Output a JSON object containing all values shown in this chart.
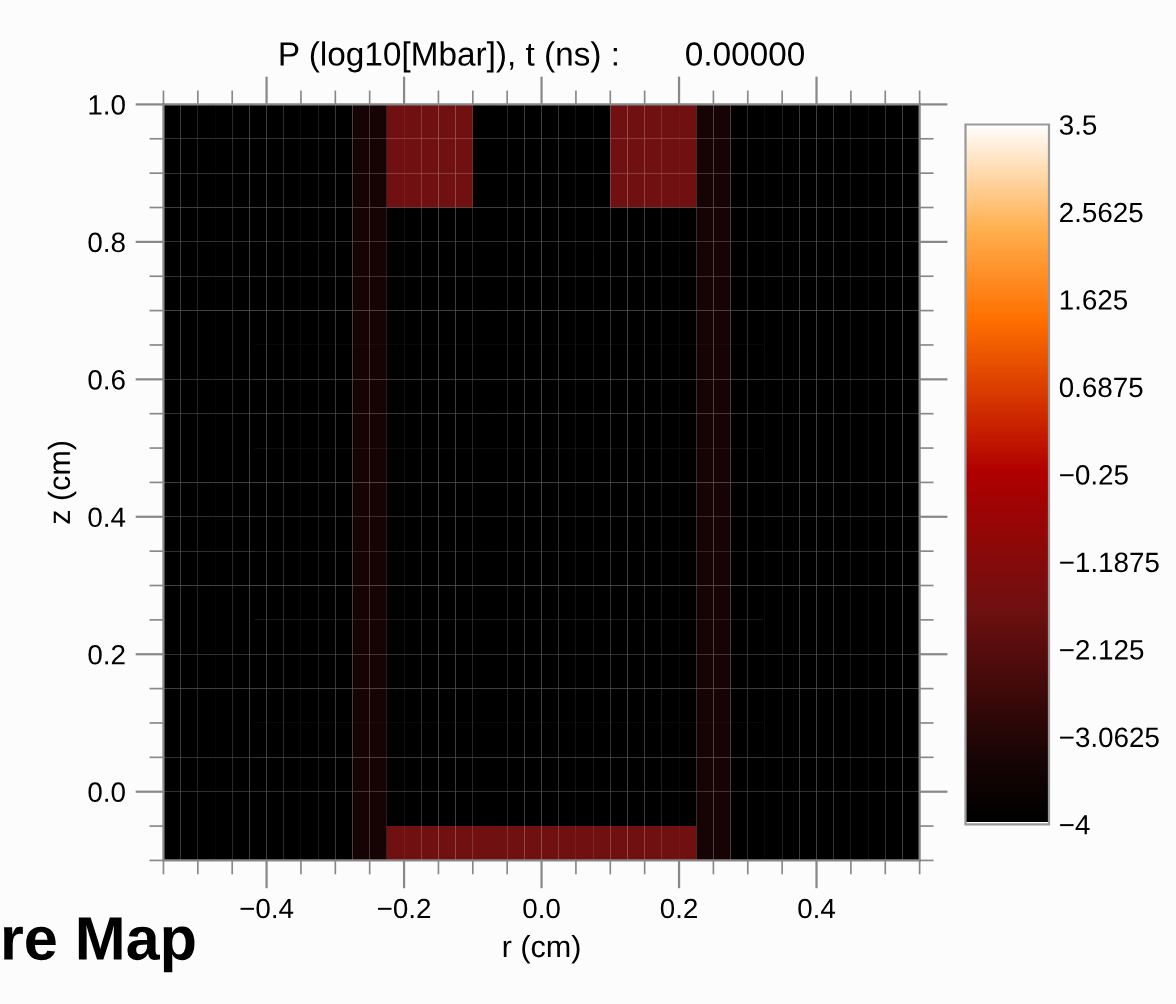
{
  "chart_data": {
    "type": "heatmap",
    "title": "P (log10[Mbar]), t (ns) :       0.00000",
    "xlabel": "r (cm)",
    "ylabel": "z (cm)",
    "x": [
      -0.5375,
      -0.5125,
      -0.4875,
      -0.4625,
      -0.4375,
      -0.4125,
      -0.3875,
      -0.3625,
      -0.3375,
      -0.3125,
      -0.2875,
      -0.2625,
      -0.2375,
      -0.2125,
      -0.1875,
      -0.1625,
      -0.1375,
      -0.1125,
      -0.0875,
      -0.0625,
      -0.0375,
      -0.0125,
      0.0125,
      0.0375,
      0.0625,
      0.0875,
      0.1125,
      0.1375,
      0.1625,
      0.1875,
      0.2125,
      0.2375,
      0.2625,
      0.2875,
      0.3125,
      0.3375,
      0.3625,
      0.3875,
      0.4125,
      0.4375,
      0.4625,
      0.4875,
      0.5125,
      0.5375
    ],
    "y": [
      0.975,
      0.925,
      0.875,
      0.825,
      0.775,
      0.725,
      0.675,
      0.625,
      0.575,
      0.525,
      0.475,
      0.425,
      0.375,
      0.325,
      0.275,
      0.225,
      0.175,
      0.125,
      0.075,
      0.025,
      -0.025,
      -0.075
    ],
    "cells": [
      [
        -4,
        -4,
        -4,
        -4,
        -4,
        -4,
        -4,
        -4,
        -4,
        -4,
        -4,
        -3.4,
        -3.4,
        -1.7,
        -1.7,
        -1.7,
        -1.7,
        -1.7,
        -4,
        -4,
        -4,
        -4,
        -4,
        -4,
        -4,
        -4,
        -1.7,
        -1.7,
        -1.7,
        -1.7,
        -1.7,
        -3.4,
        -3.4,
        -4,
        -4,
        -4,
        -4,
        -4,
        -4,
        -4,
        -4,
        -4,
        -4,
        -4
      ],
      [
        -4,
        -4,
        -4,
        -4,
        -4,
        -4,
        -4,
        -4,
        -4,
        -4,
        -4,
        -3.4,
        -3.4,
        -1.7,
        -1.7,
        -1.7,
        -1.7,
        -1.7,
        -4,
        -4,
        -4,
        -4,
        -4,
        -4,
        -4,
        -4,
        -1.7,
        -1.7,
        -1.7,
        -1.7,
        -1.7,
        -3.4,
        -3.4,
        -4,
        -4,
        -4,
        -4,
        -4,
        -4,
        -4,
        -4,
        -4,
        -4,
        -4
      ],
      [
        -4,
        -4,
        -4,
        -4,
        -4,
        -4,
        -4,
        -4,
        -4,
        -4,
        -4,
        -3.4,
        -3.4,
        -1.7,
        -1.7,
        -1.7,
        -1.7,
        -1.7,
        -4,
        -4,
        -4,
        -4,
        -4,
        -4,
        -4,
        -4,
        -1.7,
        -1.7,
        -1.7,
        -1.7,
        -1.7,
        -3.4,
        -3.4,
        -4,
        -4,
        -4,
        -4,
        -4,
        -4,
        -4,
        -4,
        -4,
        -4,
        -4
      ],
      [
        -4,
        -4,
        -4,
        -4,
        -4,
        -4,
        -4,
        -4,
        -4,
        -4,
        -4,
        -3.4,
        -3.4,
        -4,
        -4,
        -4,
        -4,
        -4,
        -4,
        -4,
        -4,
        -4,
        -4,
        -4,
        -4,
        -4,
        -4,
        -4,
        -4,
        -4,
        -4,
        -3.4,
        -3.4,
        -4,
        -4,
        -4,
        -4,
        -4,
        -4,
        -4,
        -4,
        -4,
        -4,
        -4
      ],
      [
        -4,
        -4,
        -4,
        -4,
        -4,
        -4,
        -4,
        -4,
        -4,
        -4,
        -4,
        -3.4,
        -3.4,
        -4,
        -4,
        -4,
        -4,
        -4,
        -4,
        -4,
        -4,
        -4,
        -4,
        -4,
        -4,
        -4,
        -4,
        -4,
        -4,
        -4,
        -4,
        -3.4,
        -3.4,
        -4,
        -4,
        -4,
        -4,
        -4,
        -4,
        -4,
        -4,
        -4,
        -4,
        -4
      ],
      [
        -4,
        -4,
        -4,
        -4,
        -4,
        -4,
        -4,
        -4,
        -4,
        -4,
        -4,
        -3.4,
        -3.4,
        -4,
        -4,
        -4,
        -4,
        -4,
        -4,
        -4,
        -4,
        -4,
        -4,
        -4,
        -4,
        -4,
        -4,
        -4,
        -4,
        -4,
        -4,
        -3.4,
        -3.4,
        -4,
        -4,
        -4,
        -4,
        -4,
        -4,
        -4,
        -4,
        -4,
        -4,
        -4
      ],
      [
        -4,
        -4,
        -4,
        -4,
        -4,
        -4,
        -4,
        -4,
        -4,
        -4,
        -4,
        -3.4,
        -3.4,
        -4,
        -4,
        -4,
        -4,
        -4,
        -4,
        -4,
        -4,
        -4,
        -4,
        -4,
        -4,
        -4,
        -4,
        -4,
        -4,
        -4,
        -4,
        -3.4,
        -3.4,
        -4,
        -4,
        -4,
        -4,
        -4,
        -4,
        -4,
        -4,
        -4,
        -4,
        -4
      ],
      [
        -4,
        -4,
        -4,
        -4,
        -4,
        -4,
        -4,
        -4,
        -4,
        -4,
        -4,
        -3.4,
        -3.4,
        -4,
        -4,
        -4,
        -4,
        -4,
        -4,
        -4,
        -4,
        -4,
        -4,
        -4,
        -4,
        -4,
        -4,
        -4,
        -4,
        -4,
        -4,
        -3.4,
        -3.4,
        -4,
        -4,
        -4,
        -4,
        -4,
        -4,
        -4,
        -4,
        -4,
        -4,
        -4
      ],
      [
        -4,
        -4,
        -4,
        -4,
        -4,
        -4,
        -4,
        -4,
        -4,
        -4,
        -4,
        -3.4,
        -3.4,
        -4,
        -4,
        -4,
        -4,
        -4,
        -4,
        -4,
        -4,
        -4,
        -4,
        -4,
        -4,
        -4,
        -4,
        -4,
        -4,
        -4,
        -4,
        -3.4,
        -3.4,
        -4,
        -4,
        -4,
        -4,
        -4,
        -4,
        -4,
        -4,
        -4,
        -4,
        -4
      ],
      [
        -4,
        -4,
        -4,
        -4,
        -4,
        -4,
        -4,
        -4,
        -4,
        -4,
        -4,
        -3.4,
        -3.4,
        -4,
        -4,
        -4,
        -4,
        -4,
        -4,
        -4,
        -4,
        -4,
        -4,
        -4,
        -4,
        -4,
        -4,
        -4,
        -4,
        -4,
        -4,
        -3.4,
        -3.4,
        -4,
        -4,
        -4,
        -4,
        -4,
        -4,
        -4,
        -4,
        -4,
        -4,
        -4
      ],
      [
        -4,
        -4,
        -4,
        -4,
        -4,
        -4,
        -4,
        -4,
        -4,
        -4,
        -4,
        -3.4,
        -3.4,
        -4,
        -4,
        -4,
        -4,
        -4,
        -4,
        -4,
        -4,
        -4,
        -4,
        -4,
        -4,
        -4,
        -4,
        -4,
        -4,
        -4,
        -4,
        -3.4,
        -3.4,
        -4,
        -4,
        -4,
        -4,
        -4,
        -4,
        -4,
        -4,
        -4,
        -4,
        -4
      ],
      [
        -4,
        -4,
        -4,
        -4,
        -4,
        -4,
        -4,
        -4,
        -4,
        -4,
        -4,
        -3.4,
        -3.4,
        -4,
        -4,
        -4,
        -4,
        -4,
        -4,
        -4,
        -4,
        -4,
        -4,
        -4,
        -4,
        -4,
        -4,
        -4,
        -4,
        -4,
        -4,
        -3.4,
        -3.4,
        -4,
        -4,
        -4,
        -4,
        -4,
        -4,
        -4,
        -4,
        -4,
        -4,
        -4
      ],
      [
        -4,
        -4,
        -4,
        -4,
        -4,
        -4,
        -4,
        -4,
        -4,
        -4,
        -4,
        -3.4,
        -3.4,
        -4,
        -4,
        -4,
        -4,
        -4,
        -4,
        -4,
        -4,
        -4,
        -4,
        -4,
        -4,
        -4,
        -4,
        -4,
        -4,
        -4,
        -4,
        -3.4,
        -3.4,
        -4,
        -4,
        -4,
        -4,
        -4,
        -4,
        -4,
        -4,
        -4,
        -4,
        -4
      ],
      [
        -4,
        -4,
        -4,
        -4,
        -4,
        -4,
        -4,
        -4,
        -4,
        -4,
        -4,
        -3.4,
        -3.4,
        -4,
        -4,
        -4,
        -4,
        -4,
        -4,
        -4,
        -4,
        -4,
        -4,
        -4,
        -4,
        -4,
        -4,
        -4,
        -4,
        -4,
        -4,
        -3.4,
        -3.4,
        -4,
        -4,
        -4,
        -4,
        -4,
        -4,
        -4,
        -4,
        -4,
        -4,
        -4
      ],
      [
        -4,
        -4,
        -4,
        -4,
        -4,
        -4,
        -4,
        -4,
        -4,
        -4,
        -4,
        -3.4,
        -3.4,
        -4,
        -4,
        -4,
        -4,
        -4,
        -4,
        -4,
        -4,
        -4,
        -4,
        -4,
        -4,
        -4,
        -4,
        -4,
        -4,
        -4,
        -4,
        -3.4,
        -3.4,
        -4,
        -4,
        -4,
        -4,
        -4,
        -4,
        -4,
        -4,
        -4,
        -4,
        -4
      ],
      [
        -4,
        -4,
        -4,
        -4,
        -4,
        -4,
        -4,
        -4,
        -4,
        -4,
        -4,
        -3.4,
        -3.4,
        -4,
        -4,
        -4,
        -4,
        -4,
        -4,
        -4,
        -4,
        -4,
        -4,
        -4,
        -4,
        -4,
        -4,
        -4,
        -4,
        -4,
        -4,
        -3.4,
        -3.4,
        -4,
        -4,
        -4,
        -4,
        -4,
        -4,
        -4,
        -4,
        -4,
        -4,
        -4
      ],
      [
        -4,
        -4,
        -4,
        -4,
        -4,
        -4,
        -4,
        -4,
        -4,
        -4,
        -4,
        -3.4,
        -3.4,
        -4,
        -4,
        -4,
        -4,
        -4,
        -4,
        -4,
        -4,
        -4,
        -4,
        -4,
        -4,
        -4,
        -4,
        -4,
        -4,
        -4,
        -4,
        -3.4,
        -3.4,
        -4,
        -4,
        -4,
        -4,
        -4,
        -4,
        -4,
        -4,
        -4,
        -4,
        -4
      ],
      [
        -4,
        -4,
        -4,
        -4,
        -4,
        -4,
        -4,
        -4,
        -4,
        -4,
        -4,
        -3.4,
        -3.4,
        -4,
        -4,
        -4,
        -4,
        -4,
        -4,
        -4,
        -4,
        -4,
        -4,
        -4,
        -4,
        -4,
        -4,
        -4,
        -4,
        -4,
        -4,
        -3.4,
        -3.4,
        -4,
        -4,
        -4,
        -4,
        -4,
        -4,
        -4,
        -4,
        -4,
        -4,
        -4
      ],
      [
        -4,
        -4,
        -4,
        -4,
        -4,
        -4,
        -4,
        -4,
        -4,
        -4,
        -4,
        -3.4,
        -3.4,
        -4,
        -4,
        -4,
        -4,
        -4,
        -4,
        -4,
        -4,
        -4,
        -4,
        -4,
        -4,
        -4,
        -4,
        -4,
        -4,
        -4,
        -4,
        -3.4,
        -3.4,
        -4,
        -4,
        -4,
        -4,
        -4,
        -4,
        -4,
        -4,
        -4,
        -4,
        -4
      ],
      [
        -4,
        -4,
        -4,
        -4,
        -4,
        -4,
        -4,
        -4,
        -4,
        -4,
        -4,
        -3.4,
        -3.4,
        -4,
        -4,
        -4,
        -4,
        -4,
        -4,
        -4,
        -4,
        -4,
        -4,
        -4,
        -4,
        -4,
        -4,
        -4,
        -4,
        -4,
        -4,
        -3.4,
        -3.4,
        -4,
        -4,
        -4,
        -4,
        -4,
        -4,
        -4,
        -4,
        -4,
        -4,
        -4
      ],
      [
        -4,
        -4,
        -4,
        -4,
        -4,
        -4,
        -4,
        -4,
        -4,
        -4,
        -4,
        -3.4,
        -3.4,
        -4,
        -4,
        -4,
        -4,
        -4,
        -4,
        -4,
        -4,
        -4,
        -4,
        -4,
        -4,
        -4,
        -4,
        -4,
        -4,
        -4,
        -4,
        -3.4,
        -3.4,
        -4,
        -4,
        -4,
        -4,
        -4,
        -4,
        -4,
        -4,
        -4,
        -4,
        -4
      ],
      [
        -4,
        -4,
        -4,
        -4,
        -4,
        -4,
        -4,
        -4,
        -4,
        -4,
        -4,
        -3.4,
        -3.4,
        -1.7,
        -1.7,
        -1.7,
        -1.7,
        -1.7,
        -1.7,
        -1.7,
        -1.7,
        -1.7,
        -1.7,
        -1.7,
        -1.7,
        -1.7,
        -1.7,
        -1.7,
        -1.7,
        -1.7,
        -1.7,
        -3.4,
        -3.4,
        -4,
        -4,
        -4,
        -4,
        -4,
        -4,
        -4,
        -4,
        -4,
        -4,
        -4
      ]
    ],
    "xlim": [
      -0.55,
      0.55
    ],
    "ylim": [
      -0.1,
      1.0
    ],
    "xticks": [
      {
        "value": -0.4,
        "label": "−0.4"
      },
      {
        "value": -0.2,
        "label": "−0.2"
      },
      {
        "value": 0,
        "label": "0.0"
      },
      0.2,
      0.4
    ],
    "yticks": [
      {
        "value": 0,
        "label": "0.0"
      },
      0.2,
      0.4,
      0.6,
      0.8,
      {
        "value": 1,
        "label": "1.0"
      }
    ],
    "clim": [
      -4,
      3.5
    ],
    "cticks": [
      {
        "value": -4,
        "label": "−4"
      },
      {
        "value": -3.0625,
        "label": "−3.0625"
      },
      {
        "value": -2.125,
        "label": "−2.125"
      },
      {
        "value": -1.1875,
        "label": "−1.1875"
      },
      {
        "value": -0.25,
        "label": "−0.25"
      },
      0.6875,
      1.625,
      2.5625,
      3.5
    ],
    "annotations": [
      "re Map"
    ]
  }
}
